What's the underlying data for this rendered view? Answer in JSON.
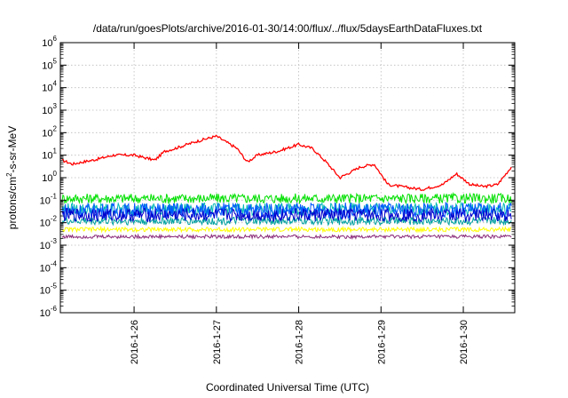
{
  "chart_data": {
    "type": "line",
    "title": "/data/run/goesPlots/archive/2016-01-30/14:00/flux/../flux/5daysEarthDataFluxes.txt",
    "xlabel": "Coordinated Universal Time (UTC)",
    "ylabel": {
      "pre": "protons/cm",
      "sup": "2",
      "post": "-s-sr-MeV"
    },
    "x_range": [
      "2016-01-25T02:30",
      "2016-01-30T15:00"
    ],
    "x_ticks": [
      "2016-1-26",
      "2016-1-27",
      "2016-1-28",
      "2016-1-29",
      "2016-1-30"
    ],
    "x_tick_dates": [
      "2016-01-26",
      "2016-01-27",
      "2016-01-28",
      "2016-01-29",
      "2016-01-30"
    ],
    "y_scale": "log",
    "ylim": [
      1e-06,
      1000000.0
    ],
    "y_ticks": [
      {
        "base": "10",
        "exp": "-6",
        "value": 1e-06
      },
      {
        "base": "10",
        "exp": "-5",
        "value": 1e-05
      },
      {
        "base": "10",
        "exp": "-4",
        "value": 0.0001
      },
      {
        "base": "10",
        "exp": "-3",
        "value": 0.001
      },
      {
        "base": "10",
        "exp": "-2",
        "value": 0.01
      },
      {
        "base": "10",
        "exp": "-1",
        "value": 0.1
      },
      {
        "base": "10",
        "exp": "0",
        "value": 1
      },
      {
        "base": "10",
        "exp": "1",
        "value": 10.0
      },
      {
        "base": "10",
        "exp": "2",
        "value": 100.0
      },
      {
        "base": "10",
        "exp": "3",
        "value": 1000.0
      },
      {
        "base": "10",
        "exp": "4",
        "value": 10000.0
      },
      {
        "base": "10",
        "exp": "5",
        "value": 100000.0
      },
      {
        "base": "10",
        "exp": "6",
        "value": 1000000.0
      }
    ],
    "grid": true,
    "legend": "none",
    "series": [
      {
        "color": "#ff0000",
        "x": [
          "2016-01-25T03:00",
          "2016-01-25T06:00",
          "2016-01-25T09:00",
          "2016-01-25T12:00",
          "2016-01-25T18:00",
          "2016-01-26T00:00",
          "2016-01-26T06:00",
          "2016-01-26T09:00",
          "2016-01-26T12:00",
          "2016-01-26T18:00",
          "2016-01-27T00:00",
          "2016-01-27T06:00",
          "2016-01-27T09:00",
          "2016-01-27T12:00",
          "2016-01-27T18:00",
          "2016-01-28T00:00",
          "2016-01-28T04:00",
          "2016-01-28T08:00",
          "2016-01-28T12:00",
          "2016-01-28T18:00",
          "2016-01-28T22:00",
          "2016-01-29T02:00",
          "2016-01-29T06:00",
          "2016-01-29T12:00",
          "2016-01-29T18:00",
          "2016-01-29T22:00",
          "2016-01-30T02:00",
          "2016-01-30T06:00",
          "2016-01-30T10:00",
          "2016-01-30T14:00"
        ],
        "y": [
          6,
          4,
          5,
          6,
          10,
          10,
          6,
          15,
          20,
          40,
          70,
          20,
          5,
          10,
          15,
          30,
          20,
          5,
          1,
          3,
          4,
          0.5,
          0.4,
          0.3,
          0.5,
          1.5,
          0.5,
          0.4,
          0.5,
          3
        ]
      },
      {
        "color": "#00e000",
        "x": [
          "2016-01-25T03:00",
          "2016-01-30T14:00"
        ],
        "y": [
          0.12,
          0.12
        ]
      },
      {
        "color": "#00b7b7",
        "x": [
          "2016-01-25T03:00",
          "2016-01-30T14:00"
        ],
        "y": [
          0.04,
          0.04
        ]
      },
      {
        "color": "#0055ff",
        "x": [
          "2016-01-25T03:00",
          "2016-01-30T14:00"
        ],
        "y": [
          0.035,
          0.035
        ]
      },
      {
        "color": "#0000cc",
        "x": [
          "2016-01-25T03:00",
          "2016-01-30T14:00"
        ],
        "y": [
          0.022,
          0.022
        ]
      },
      {
        "color": "#00a0a0",
        "x": [
          "2016-01-25T03:00",
          "2016-01-30T14:00"
        ],
        "y": [
          0.012,
          0.012
        ]
      },
      {
        "color": "#ffff00",
        "x": [
          "2016-01-25T03:00",
          "2016-01-30T14:00"
        ],
        "y": [
          0.005,
          0.005
        ]
      },
      {
        "color": "#8b2c7a",
        "x": [
          "2016-01-25T03:00",
          "2016-01-30T14:00"
        ],
        "y": [
          0.0024,
          0.0024
        ]
      }
    ]
  }
}
